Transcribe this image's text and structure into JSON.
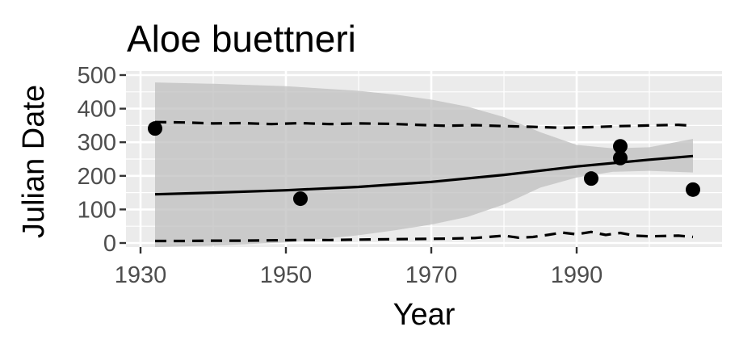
{
  "chart_data": {
    "type": "scatter",
    "title": "Aloe buettneri",
    "xlabel": "Year",
    "ylabel": "Julian Date",
    "xlim": [
      1928,
      2010
    ],
    "ylim": [
      -12,
      512
    ],
    "x_ticks": [
      1930,
      1950,
      1970,
      1990
    ],
    "y_ticks": [
      0,
      100,
      200,
      300,
      400,
      500
    ],
    "grid": true,
    "legend": "none",
    "colors": {
      "panel": "#ebebeb",
      "grid": "#ffffff",
      "ribbon": "#bdbdbd",
      "line": "#000000",
      "points": "#000000"
    },
    "points": [
      {
        "x": 1932,
        "y": 341
      },
      {
        "x": 1952,
        "y": 132
      },
      {
        "x": 1992,
        "y": 192
      },
      {
        "x": 1996,
        "y": 288
      },
      {
        "x": 1996,
        "y": 253
      },
      {
        "x": 2006,
        "y": 159
      }
    ],
    "trend_line": {
      "x": [
        1932,
        1940,
        1950,
        1960,
        1970,
        1980,
        1990,
        2000,
        2006
      ],
      "y": [
        145,
        150,
        157,
        167,
        182,
        203,
        228,
        248,
        259
      ]
    },
    "confidence_band": {
      "x": [
        1932,
        1940,
        1950,
        1960,
        1965,
        1970,
        1975,
        1980,
        1985,
        1990,
        1995,
        2000,
        2006
      ],
      "upper": [
        478,
        474,
        467,
        453,
        442,
        427,
        406,
        375,
        330,
        292,
        282,
        285,
        310
      ],
      "lower": [
        -12,
        -8,
        2,
        23,
        38,
        55,
        78,
        115,
        165,
        195,
        212,
        215,
        210
      ]
    },
    "upper_dashed": {
      "x": [
        1932,
        1936,
        1940,
        1944,
        1948,
        1952,
        1956,
        1960,
        1964,
        1968,
        1972,
        1976,
        1980,
        1984,
        1988,
        1992,
        1996,
        2000,
        2004,
        2006
      ],
      "y": [
        360,
        359,
        356,
        357,
        354,
        357,
        354,
        356,
        355,
        352,
        349,
        351,
        348,
        346,
        343,
        345,
        348,
        350,
        352,
        349
      ]
    },
    "lower_dashed": {
      "x": [
        1932,
        1936,
        1940,
        1944,
        1948,
        1952,
        1956,
        1960,
        1964,
        1968,
        1972,
        1976,
        1980,
        1982,
        1984,
        1986,
        1988,
        1990,
        1992,
        1994,
        1996,
        1998,
        2000,
        2004,
        2006
      ],
      "y": [
        6,
        6,
        7,
        7,
        8,
        9,
        9,
        10,
        11,
        12,
        13,
        15,
        22,
        16,
        18,
        24,
        31,
        26,
        33,
        24,
        30,
        22,
        20,
        22,
        18
      ]
    }
  }
}
